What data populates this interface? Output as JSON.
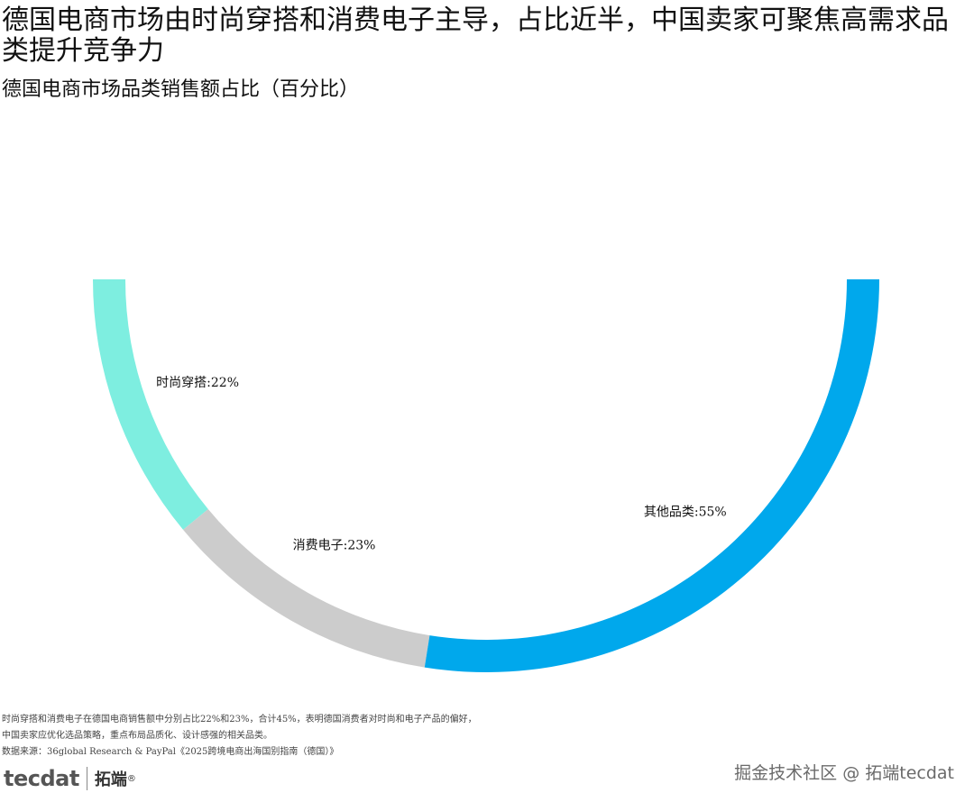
{
  "title": "德国电商市场由时尚穿搭和消费电子主导，占比近半，中国卖家可聚焦高需求品类提升竞争力",
  "subtitle": "德国电商市场品类销售额占比（百分比）",
  "chart_data": {
    "type": "pie",
    "variant": "half-donut",
    "slices": [
      {
        "label": "时尚穿搭",
        "value": 22,
        "display": "时尚穿搭:22%",
        "color": "#7eeee0"
      },
      {
        "label": "消费电子",
        "value": 23,
        "display": "消费电子:23%",
        "color": "#cccccc"
      },
      {
        "label": "其他品类",
        "value": 55,
        "display": "其他品类:55%",
        "color": "#00a8ec"
      }
    ],
    "unit": "%"
  },
  "footnote": {
    "line1": "时尚穿搭和消费电子在德国电商销售额中分别占比22%和23%，合计45%，表明德国消费者对时尚和电子产品的偏好，",
    "line2": "中国卖家应优化选品策略，重点布局品质化、设计感强的相关品类。",
    "line3": "数据来源：36global Research & PayPal《2025跨境电商出海国别指南（德国）》"
  },
  "logo": {
    "mark": "tecdat",
    "name": "拓端",
    "reg": "®"
  },
  "watermark": "掘金技术社区 @ 拓端tecdat"
}
